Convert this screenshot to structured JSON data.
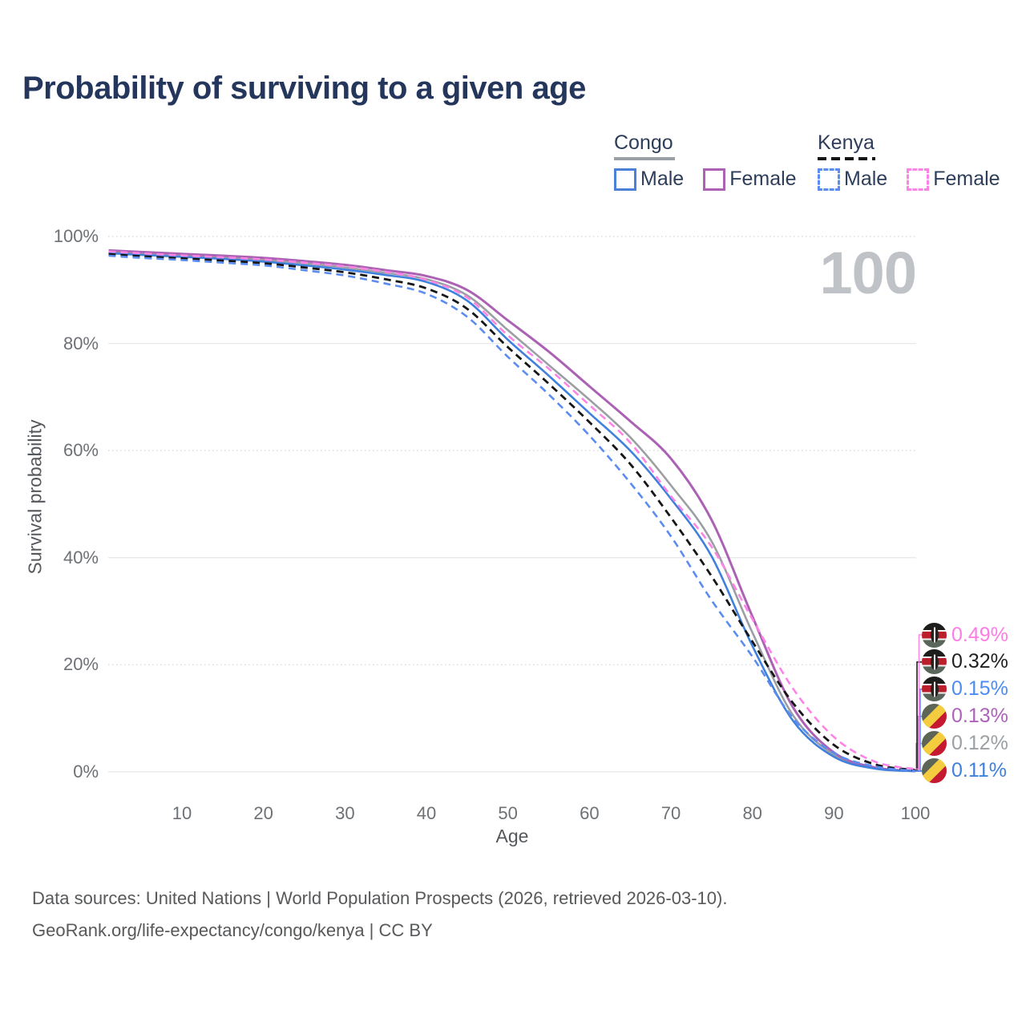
{
  "title": "Probability of surviving to a given age",
  "watermark": "100",
  "legend": {
    "congo": {
      "name": "Congo",
      "rule_color": "#9aa0a6",
      "male_label": "Male",
      "female_label": "Female",
      "male_color": "#4a80d8",
      "female_color": "#ac62b4"
    },
    "kenya": {
      "name": "Kenya",
      "rule_color": "#141414",
      "male_label": "Male",
      "female_label": "Female",
      "male_color": "#5b8cf0",
      "female_color": "#fd84e6"
    }
  },
  "axes": {
    "y_title": "Survival probability",
    "x_title": "Age"
  },
  "end_labels": [
    {
      "flag": "kenya",
      "value": "0.49%",
      "color": "#fd7ce4"
    },
    {
      "flag": "kenya",
      "value": "0.32%",
      "color": "#1f1f1f"
    },
    {
      "flag": "kenya",
      "value": "0.15%",
      "color": "#4d8cf0"
    },
    {
      "flag": "congo",
      "value": "0.13%",
      "color": "#ad62bb"
    },
    {
      "flag": "congo",
      "value": "0.12%",
      "color": "#9aa0a4"
    },
    {
      "flag": "congo",
      "value": "0.11%",
      "color": "#3f81dc"
    }
  ],
  "footer": {
    "line1": "Data sources: United Nations | World Population Prospects (2026, retrieved 2026-03-10).",
    "line2": "GeoRank.org/life-expectancy/congo/kenya | CC BY"
  },
  "chart_data": {
    "type": "line",
    "title": "Probability of surviving to a given age",
    "xlabel": "Age",
    "ylabel": "Survival probability",
    "xlim": [
      0,
      100
    ],
    "ylim": [
      0,
      100
    ],
    "x_ticks": [
      10,
      20,
      30,
      40,
      50,
      60,
      70,
      80,
      90,
      100
    ],
    "y_ticks": [
      0,
      20,
      40,
      60,
      80,
      100
    ],
    "y_tick_labels": [
      "0%",
      "20%",
      "40%",
      "60%",
      "80%",
      "100%"
    ],
    "grid": "horizontal",
    "legend_position": "top-right",
    "ages": [
      1,
      5,
      10,
      15,
      20,
      25,
      30,
      35,
      40,
      45,
      50,
      55,
      60,
      65,
      70,
      75,
      80,
      85,
      90,
      95,
      100
    ],
    "series": [
      {
        "id": "congo-all",
        "name": "Congo",
        "country": "Congo",
        "sex": "all",
        "color": "#9b9fa3",
        "dash": false,
        "width": 2.6,
        "label_index": 4,
        "leader_x": 1143,
        "end_value_pct": 0.12,
        "values": [
          97.1,
          96.75,
          96.4,
          96.05,
          95.6,
          95.0,
          94.2,
          93.2,
          92.0,
          89.0,
          82.5,
          76.0,
          69.5,
          62.5,
          53.5,
          43.0,
          26.0,
          10.5,
          3.2,
          0.7,
          0.12
        ]
      },
      {
        "id": "congo-female",
        "name": "Congo Female",
        "country": "Congo",
        "sex": "female",
        "color": "#ac62b4",
        "dash": false,
        "width": 3,
        "label_index": 3,
        "leader_x": 1145.5,
        "end_value_pct": 0.13,
        "values": [
          97.4,
          97.1,
          96.75,
          96.4,
          96.0,
          95.4,
          94.7,
          93.7,
          92.6,
          90.0,
          84.3,
          78.5,
          72.0,
          65.5,
          58.5,
          47.0,
          29.0,
          12.0,
          3.6,
          0.8,
          0.13
        ]
      },
      {
        "id": "congo-male",
        "name": "Congo Male",
        "country": "Congo",
        "sex": "male",
        "color": "#3f81dc",
        "dash": false,
        "width": 2.6,
        "label_index": 5,
        "leader_x": 1149,
        "end_value_pct": 0.11,
        "values": [
          96.9,
          96.55,
          96.2,
          95.8,
          95.3,
          94.6,
          93.8,
          92.8,
          91.5,
          88.0,
          80.7,
          74.0,
          67.0,
          60.0,
          51.0,
          40.2,
          23.5,
          9.5,
          2.8,
          0.6,
          0.11
        ]
      },
      {
        "id": "kenya-all",
        "name": "Kenya",
        "country": "Kenya",
        "sex": "all",
        "color": "#161616",
        "dash": true,
        "width": 2.8,
        "label_index": 1,
        "leader_x": 1144,
        "end_value_pct": 0.32,
        "values": [
          96.7,
          96.3,
          95.9,
          95.5,
          95.0,
          94.2,
          93.3,
          92.0,
          90.3,
          86.5,
          79.3,
          72.5,
          65.3,
          57.5,
          47.5,
          36.5,
          24.3,
          12.8,
          5.0,
          1.4,
          0.32
        ]
      },
      {
        "id": "kenya-female",
        "name": "Kenya Female",
        "country": "Kenya",
        "sex": "female",
        "color": "#fd84e6",
        "dash": true,
        "width": 2.6,
        "label_index": 0,
        "leader_x": 1146.5,
        "end_value_pct": 0.49,
        "values": [
          97.2,
          96.85,
          96.45,
          96.1,
          95.7,
          95.1,
          94.4,
          93.4,
          91.9,
          88.6,
          81.5,
          75.3,
          68.5,
          61.5,
          51.5,
          42.0,
          28.5,
          15.5,
          6.5,
          1.9,
          0.49
        ]
      },
      {
        "id": "kenya-male",
        "name": "Kenya Male",
        "country": "Kenya",
        "sex": "male",
        "color": "#5b8cf0",
        "dash": true,
        "width": 2.6,
        "label_index": 2,
        "leader_x": 1148,
        "end_value_pct": 0.15,
        "values": [
          96.4,
          96.0,
          95.6,
          95.1,
          94.6,
          93.7,
          92.7,
          91.2,
          89.3,
          85.0,
          77.5,
          70.5,
          62.8,
          54.0,
          44.0,
          32.0,
          21.5,
          10.0,
          3.5,
          1.0,
          0.15
        ]
      }
    ]
  }
}
